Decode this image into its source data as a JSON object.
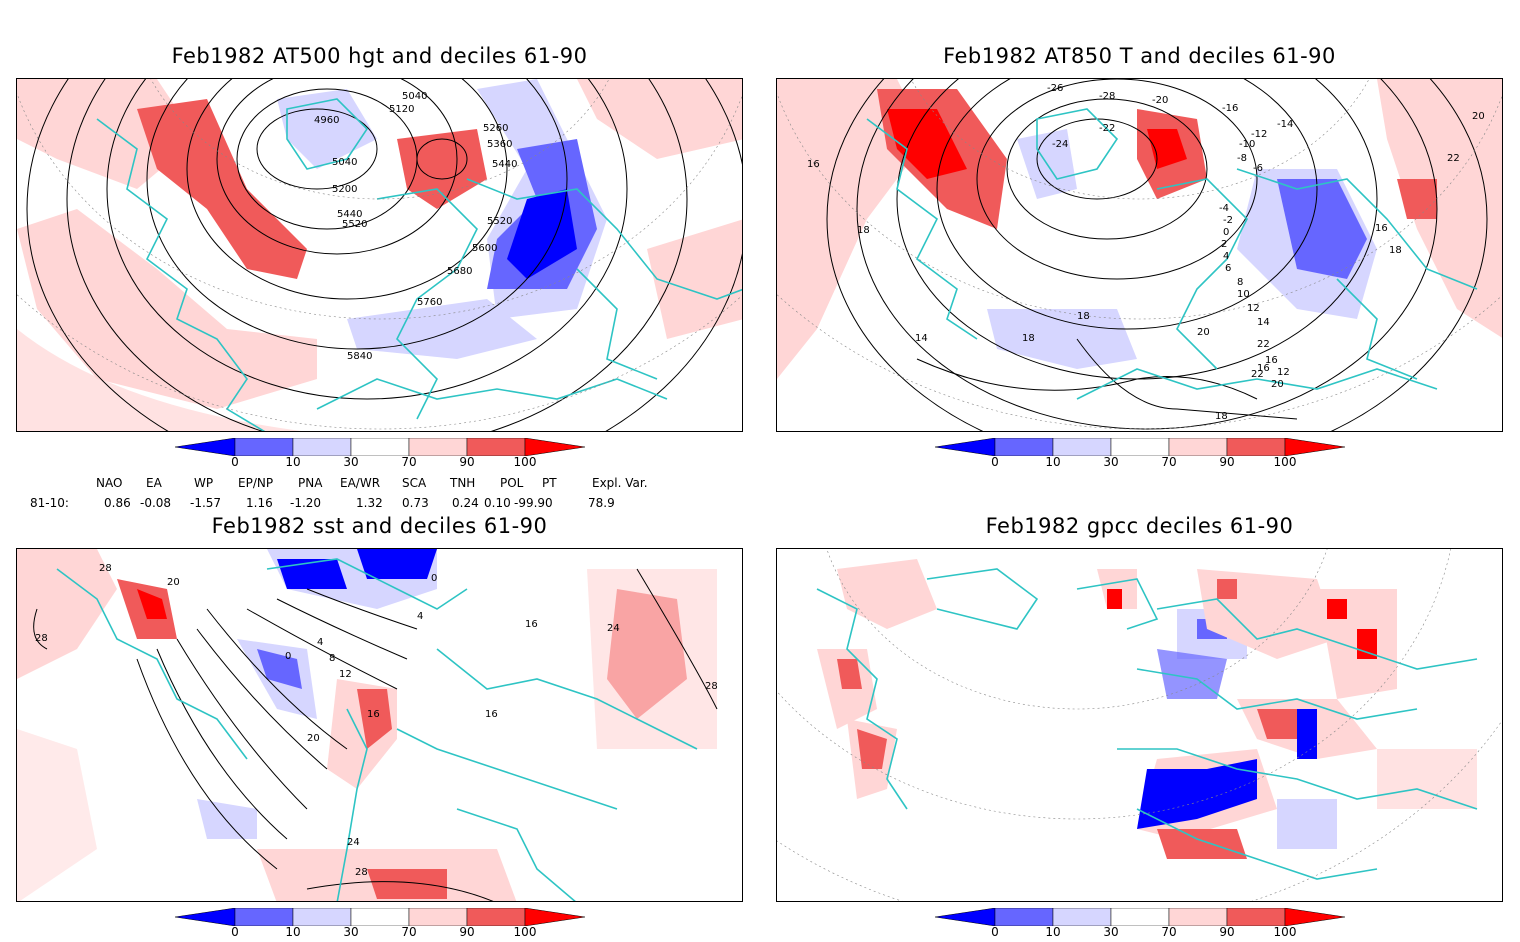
{
  "panels": [
    {
      "title": "Feb1982 AT500 hgt and deciles 61-90",
      "contour_labels": [
        "5040",
        "5120",
        "4960",
        "5260",
        "5360",
        "5440",
        "5040",
        "5200",
        "5440",
        "5520",
        "5520",
        "5600",
        "5680",
        "5760",
        "5840"
      ]
    },
    {
      "title": "Feb1982 AT850 T and deciles 61-90",
      "contour_labels": [
        "-26",
        "-28",
        "-22",
        "-20",
        "-16",
        "-24",
        "-14",
        "-12",
        "-10",
        "-8",
        "-6",
        "-4",
        "-2",
        "0",
        "2",
        "4",
        "6",
        "8",
        "10",
        "12",
        "14",
        "16",
        "18",
        "20",
        "22",
        "16",
        "18",
        "18",
        "18",
        "20",
        "22",
        "12",
        "14",
        "16",
        "16",
        "20",
        "22",
        "18"
      ]
    },
    {
      "title": "Feb1982 sst and deciles 61-90",
      "contour_labels": [
        "28",
        "20",
        "28",
        "0",
        "4",
        "8",
        "12",
        "16",
        "20",
        "24",
        "28",
        "0",
        "4",
        "16",
        "24",
        "28",
        "16"
      ]
    },
    {
      "title": "Feb1982 gpcc deciles 61-90",
      "contour_labels": []
    }
  ],
  "colorbar": {
    "tick_labels": [
      "0",
      "10",
      "30",
      "70",
      "90",
      "100"
    ],
    "colors": [
      "#0000ff",
      "#6666ff",
      "#d6d6ff",
      "#ffffff",
      "#ffd6d6",
      "#f05a5a",
      "#ff0000"
    ]
  },
  "indices": {
    "row_label": "81-10:",
    "columns": [
      {
        "name": "NAO",
        "value": "0.86"
      },
      {
        "name": "EA",
        "value": "-0.08"
      },
      {
        "name": "WP",
        "value": "-1.57"
      },
      {
        "name": "EP/NP",
        "value": "1.16"
      },
      {
        "name": "PNA",
        "value": "-1.20"
      },
      {
        "name": "EA/WR",
        "value": "1.32"
      },
      {
        "name": "SCA",
        "value": "0.73"
      },
      {
        "name": "TNH",
        "value": "0.24"
      },
      {
        "name": "POL",
        "value": "0.10"
      },
      {
        "name": "PT",
        "value": "-99.90"
      },
      {
        "name": "Expl. Var.",
        "value": "78.9"
      }
    ]
  }
}
